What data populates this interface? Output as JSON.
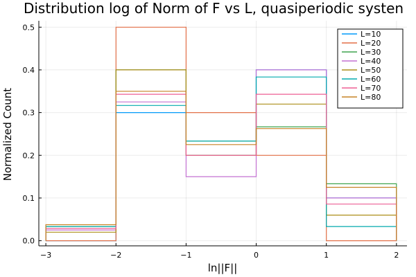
{
  "chart_data": {
    "type": "line",
    "title": "Distribution log of Norm of F vs L, quasiperiodic systen",
    "xlabel": "ln||F||",
    "ylabel": "Normalized Count",
    "xlim": [
      -3.1,
      2.15
    ],
    "ylim": [
      -0.012,
      0.515
    ],
    "x_ticks": [
      -3,
      -2,
      -1,
      0,
      1,
      2
    ],
    "x_tick_labels": [
      "−3",
      "−2",
      "−1",
      "0",
      "1",
      "2"
    ],
    "y_ticks": [
      0.0,
      0.1,
      0.2,
      0.3,
      0.4,
      0.5
    ],
    "y_tick_labels": [
      "0.0",
      "0.1",
      "0.2",
      "0.3",
      "0.4",
      "0.5"
    ],
    "grid": true,
    "legend_position": "top-right",
    "bin_edges": [
      -3,
      -2,
      -1,
      0,
      1,
      2
    ],
    "series": [
      {
        "name": "L=10",
        "color": "#009AFA",
        "values": [
          0.0,
          0.3,
          0.2,
          0.4,
          0.1
        ]
      },
      {
        "name": "L=20",
        "color": "#E36F47",
        "values": [
          0.0,
          0.5,
          0.3,
          0.2,
          0.0
        ]
      },
      {
        "name": "L=30",
        "color": "#3EA44E",
        "values": [
          0.0333,
          0.4,
          0.2333,
          0.2667,
          0.1333
        ]
      },
      {
        "name": "L=40",
        "color": "#C371D2",
        "values": [
          0.025,
          0.325,
          0.15,
          0.4,
          0.1
        ]
      },
      {
        "name": "L=50",
        "color": "#AC8E18",
        "values": [
          0.02,
          0.4,
          0.2,
          0.32,
          0.06
        ]
      },
      {
        "name": "L=60",
        "color": "#00AAAE",
        "values": [
          0.0333,
          0.3167,
          0.2333,
          0.3833,
          0.0333
        ]
      },
      {
        "name": "L=70",
        "color": "#ED5E93",
        "values": [
          0.0286,
          0.3429,
          0.2,
          0.3429,
          0.0857
        ]
      },
      {
        "name": "L=80",
        "color": "#C68225",
        "values": [
          0.0375,
          0.35,
          0.225,
          0.2625,
          0.125
        ]
      }
    ]
  }
}
